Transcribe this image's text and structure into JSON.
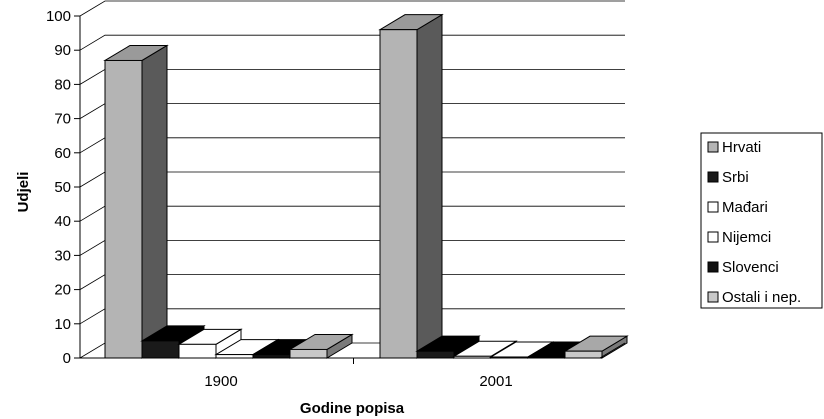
{
  "chart_data": {
    "type": "bar",
    "style": "3d-clustered",
    "categories": [
      "1900",
      "2001"
    ],
    "xlabel": "Godine popisa",
    "ylabel": "Udjeli",
    "ylim": [
      0,
      100
    ],
    "yticks": [
      0,
      10,
      20,
      30,
      40,
      50,
      60,
      70,
      80,
      90,
      100
    ],
    "grid": true,
    "legend_position": "right",
    "series": [
      {
        "name": "Hrvati",
        "values": [
          87,
          96
        ],
        "color": "#b4b4b4",
        "top_color": "#9a9a9a",
        "side_color": "#5a5a5a"
      },
      {
        "name": "Srbi",
        "values": [
          5,
          2
        ],
        "color": "#1a1a1a",
        "top_color": "#000000",
        "side_color": "#000000"
      },
      {
        "name": "Mađari",
        "values": [
          4,
          0.5
        ],
        "color": "#ffffff",
        "top_color": "#ffffff",
        "side_color": "#ffffff"
      },
      {
        "name": "Nijemci",
        "values": [
          1,
          0.3
        ],
        "color": "#ffffff",
        "top_color": "#ffffff",
        "side_color": "#ffffff"
      },
      {
        "name": "Slovenci",
        "values": [
          1,
          0.3
        ],
        "color": "#111111",
        "top_color": "#000000",
        "side_color": "#000000"
      },
      {
        "name": "Ostali i nep.",
        "values": [
          2.5,
          2
        ],
        "color": "#c8c8c8",
        "top_color": "#a8a8a8",
        "side_color": "#7a7a7a"
      }
    ]
  }
}
